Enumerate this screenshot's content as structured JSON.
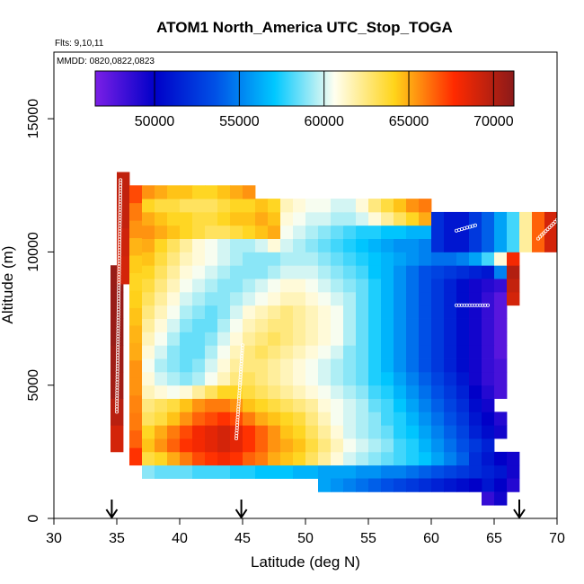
{
  "chart_data": {
    "type": "heatmap",
    "title": "ATOM1 North_America UTC_Stop_TOGA",
    "notes": [
      "Flts: 9,10,11",
      "MMDD: 0820,0822,0823"
    ],
    "xlabel": "Latitude (deg N)",
    "ylabel": "Altitude (m)",
    "xlim": [
      30,
      70
    ],
    "ylim": [
      0,
      17500
    ],
    "xticks": [
      30,
      35,
      40,
      45,
      50,
      55,
      60,
      65,
      70
    ],
    "yticks": [
      0,
      5000,
      10000,
      15000
    ],
    "grid": false,
    "colorbar": {
      "placement": "top, inside plot",
      "range": [
        46500,
        71200
      ],
      "ticks": [
        50000,
        55000,
        60000,
        65000,
        70000
      ],
      "stops": [
        "#7b1fe6",
        "#0000c8",
        "#0050e6",
        "#00c8ff",
        "#fffff0",
        "#ffd41a",
        "#ff2a00",
        "#8b1a1a"
      ]
    },
    "arrows_at_latitude": [
      34.6,
      44.9,
      67.0
    ],
    "profiles": [
      {
        "lat0": 34.5,
        "lat1": 35.5,
        "alt0": 2500,
        "alt1": 9500,
        "values": [
          69000,
          69800,
          70500,
          70600,
          70800,
          70800,
          70800
        ]
      },
      {
        "lat0": 35.0,
        "lat1": 36.0,
        "alt0": 8800,
        "alt1": 13000,
        "values": [
          69000,
          69200,
          69500,
          69600
        ]
      },
      {
        "lat0": 36.0,
        "lat1": 37.0,
        "alt0": 2000,
        "alt1": 12500,
        "values": [
          67500,
          66500,
          66000,
          65800,
          65500,
          65500,
          65000,
          64800,
          64500,
          64200,
          64000,
          64300,
          64800,
          65500,
          66000,
          67000
        ]
      },
      {
        "lat0": 37.0,
        "lat1": 67.0,
        "alt0": 1500,
        "alt1": 2000,
        "values": [
          59000,
          58500,
          58500,
          58500,
          58000,
          58000,
          58000,
          57500,
          57500,
          57000,
          57000,
          57000,
          56500,
          56500,
          56000,
          56000,
          56000,
          55500,
          55500,
          55000,
          55000,
          54500,
          54000,
          53500,
          53000,
          52500,
          52000,
          51500,
          51000,
          49500
        ]
      },
      {
        "lat0": 37.0,
        "lat1": 67.0,
        "alt0": 2000,
        "alt1": 2500,
        "values": [
          63500,
          64000,
          65000,
          66000,
          67000,
          67500,
          68000,
          67500,
          66500,
          66000,
          65000,
          64500,
          64000,
          63000,
          62000,
          61000,
          60000,
          59500,
          59000,
          58500,
          58000,
          57500,
          57000,
          56000,
          55000,
          54000,
          52000,
          51000,
          50000,
          49500
        ]
      },
      {
        "lat0": 37.0,
        "lat1": 65.0,
        "alt0": 2500,
        "alt1": 3000,
        "values": [
          64500,
          65500,
          66500,
          67500,
          68000,
          68500,
          69000,
          68500,
          67500,
          66500,
          65500,
          65000,
          64500,
          63500,
          62500,
          61500,
          60500,
          60000,
          59500,
          59000,
          58000,
          57500,
          56500,
          55500,
          54500,
          53500,
          52500,
          51500
        ]
      },
      {
        "lat0": 37.0,
        "lat1": 66.0,
        "alt0": 3000,
        "alt1": 3500,
        "values": [
          64000,
          65000,
          66000,
          67000,
          68000,
          68500,
          69000,
          68500,
          67500,
          66500,
          65500,
          64500,
          64000,
          63000,
          62000,
          61000,
          60000,
          59500,
          59000,
          58500,
          57500,
          57000,
          56000,
          55000,
          54000,
          53000,
          51500,
          50500,
          49500
        ]
      },
      {
        "lat0": 37.0,
        "lat1": 66.0,
        "alt0": 3500,
        "alt1": 4000,
        "values": [
          63000,
          63500,
          64500,
          65500,
          66500,
          67000,
          67500,
          67000,
          66000,
          65000,
          64500,
          64000,
          63500,
          62500,
          61500,
          60500,
          60000,
          59500,
          59000,
          58000,
          57500,
          56500,
          55500,
          54500,
          53500,
          52500,
          51000,
          50000,
          49000
        ]
      },
      {
        "lat0": 37.0,
        "lat1": 65.0,
        "alt0": 4000,
        "alt1": 4500,
        "values": [
          62500,
          63000,
          63500,
          64500,
          65500,
          66000,
          66000,
          65500,
          64500,
          64000,
          63500,
          63000,
          62500,
          62000,
          61000,
          60500,
          60000,
          59500,
          58500,
          58000,
          57000,
          56000,
          55000,
          54000,
          53000,
          52000,
          50500,
          49500
        ]
      },
      {
        "lat0": 37.0,
        "lat1": 66.0,
        "alt0": 4500,
        "alt1": 5000,
        "values": [
          61500,
          61000,
          60500,
          61000,
          62000,
          63000,
          64000,
          64000,
          63500,
          63000,
          62500,
          62000,
          61500,
          61000,
          60500,
          60000,
          59500,
          59000,
          58000,
          57500,
          56500,
          55500,
          54500,
          53500,
          52500,
          51500,
          50000,
          49000,
          48000
        ]
      },
      {
        "lat0": 37.0,
        "lat1": 66.0,
        "alt0": 5000,
        "alt1": 5500,
        "values": [
          61000,
          60000,
          59500,
          59000,
          59500,
          60500,
          61500,
          62500,
          63000,
          62500,
          62000,
          61500,
          61000,
          60500,
          60000,
          59500,
          59000,
          58500,
          57500,
          57000,
          56000,
          55000,
          54000,
          53000,
          52000,
          51000,
          49500,
          48500,
          48000
        ]
      },
      {
        "lat0": 37.0,
        "lat1": 66.0,
        "alt0": 5500,
        "alt1": 6000,
        "values": [
          60500,
          59500,
          59000,
          58500,
          59000,
          60000,
          61000,
          62000,
          62500,
          62500,
          62000,
          61500,
          61000,
          60500,
          60000,
          59500,
          59000,
          58500,
          57500,
          56500,
          55500,
          54500,
          53500,
          52500,
          51500,
          50500,
          49500,
          48500,
          48000
        ]
      },
      {
        "lat0": 37.0,
        "lat1": 66.0,
        "alt0": 6000,
        "alt1": 6500,
        "values": [
          61000,
          60000,
          59000,
          58500,
          58500,
          59500,
          60500,
          61500,
          62500,
          63000,
          62500,
          62000,
          61500,
          61000,
          60500,
          60000,
          59000,
          58500,
          57500,
          56500,
          55500,
          54500,
          53500,
          52500,
          51500,
          50500,
          49500,
          48500,
          47500
        ]
      },
      {
        "lat0": 37.0,
        "lat1": 66.0,
        "alt0": 6500,
        "alt1": 7000,
        "values": [
          61500,
          60500,
          59500,
          58500,
          58500,
          59000,
          60000,
          61000,
          62000,
          62500,
          63000,
          62500,
          62000,
          61500,
          61000,
          60500,
          59500,
          58500,
          57500,
          56500,
          55500,
          54500,
          53500,
          52500,
          51500,
          50500,
          49500,
          48500,
          47500
        ]
      },
      {
        "lat0": 37.0,
        "lat1": 66.0,
        "alt0": 7000,
        "alt1": 7500,
        "values": [
          62000,
          61000,
          60000,
          59000,
          58500,
          58500,
          59500,
          60500,
          61500,
          62000,
          62500,
          62500,
          62000,
          61500,
          61000,
          60500,
          59500,
          58500,
          57500,
          56500,
          55500,
          54500,
          53500,
          52500,
          51500,
          50500,
          49500,
          48500,
          47500
        ]
      },
      {
        "lat0": 37.0,
        "lat1": 66.0,
        "alt0": 7500,
        "alt1": 8000,
        "values": [
          62500,
          61500,
          60500,
          59500,
          59000,
          58500,
          59000,
          60000,
          61000,
          61500,
          62000,
          62500,
          62000,
          61500,
          61000,
          60500,
          59500,
          58500,
          57500,
          56500,
          55500,
          54500,
          53500,
          52500,
          51500,
          50500,
          49500,
          48500,
          47500
        ]
      },
      {
        "lat0": 37.0,
        "lat1": 67.0,
        "alt0": 8000,
        "alt1": 8500,
        "values": [
          63000,
          62000,
          61000,
          60000,
          59500,
          59000,
          59000,
          59500,
          60000,
          60500,
          61000,
          61500,
          61500,
          61000,
          60500,
          60000,
          59500,
          58500,
          57500,
          56500,
          55500,
          54500,
          53500,
          52500,
          51500,
          50500,
          49500,
          48500,
          47500,
          69000
        ]
      },
      {
        "lat0": 37.0,
        "lat1": 67.0,
        "alt0": 8500,
        "alt1": 9000,
        "values": [
          63500,
          62500,
          61500,
          60500,
          60000,
          59500,
          59000,
          59000,
          59500,
          60000,
          60500,
          61000,
          61000,
          60500,
          60000,
          59500,
          59000,
          58500,
          57500,
          56500,
          55500,
          54500,
          53500,
          52500,
          51500,
          50500,
          49500,
          49000,
          48500,
          69500
        ]
      },
      {
        "lat0": 37.0,
        "lat1": 67.0,
        "alt0": 9000,
        "alt1": 9500,
        "values": [
          64000,
          63000,
          62000,
          61000,
          60500,
          60000,
          59500,
          59000,
          59000,
          59000,
          59500,
          60000,
          60000,
          60000,
          59500,
          59000,
          58500,
          58000,
          57000,
          56500,
          55500,
          54500,
          53500,
          53000,
          52500,
          52000,
          51500,
          51000,
          55000,
          70000
        ]
      },
      {
        "lat0": 37.0,
        "lat1": 67.0,
        "alt0": 9500,
        "alt1": 10000,
        "values": [
          64500,
          63500,
          62500,
          61500,
          61000,
          60500,
          60000,
          59500,
          59000,
          59000,
          59000,
          59500,
          59500,
          59500,
          59000,
          58500,
          58000,
          57500,
          57000,
          56500,
          56000,
          55500,
          55000,
          54500,
          54500,
          55000,
          56000,
          58000,
          61000,
          68000
        ]
      },
      {
        "lat0": 37.0,
        "lat1": 48.0,
        "alt0": 10000,
        "alt1": 10500,
        "values": [
          65000,
          64000,
          63000,
          62000,
          61000,
          60500,
          60000,
          59500,
          59500,
          60000,
          61000
        ]
      },
      {
        "lat0": 37.0,
        "lat1": 48.0,
        "alt0": 10500,
        "alt1": 11000,
        "values": [
          65500,
          65000,
          64500,
          64000,
          63500,
          63000,
          63000,
          63500,
          64000,
          64500,
          65000
        ]
      },
      {
        "lat0": 37.0,
        "lat1": 48.0,
        "alt0": 11000,
        "alt1": 11500,
        "values": [
          65000,
          64500,
          64000,
          64000,
          63500,
          63500,
          64000,
          64500,
          64500,
          65000,
          64500
        ]
      },
      {
        "lat0": 37.0,
        "lat1": 48.0,
        "alt0": 11500,
        "alt1": 12000,
        "values": [
          64000,
          63500,
          63500,
          63000,
          63000,
          63000,
          63500,
          64000,
          64000,
          64500,
          64000
        ]
      },
      {
        "lat0": 37.0,
        "lat1": 46.0,
        "alt0": 12000,
        "alt1": 12500,
        "values": [
          65500,
          65000,
          64500,
          64500,
          64000,
          64000,
          64500,
          65000,
          65500
        ]
      },
      {
        "lat0": 48.0,
        "lat1": 60.0,
        "alt0": 10000,
        "alt1": 10500,
        "values": [
          60000,
          59500,
          59000,
          58500,
          58000,
          57500,
          57000,
          56500,
          56000,
          55500,
          55500,
          55000
        ]
      },
      {
        "lat0": 48.0,
        "lat1": 60.0,
        "alt0": 10500,
        "alt1": 11000,
        "values": [
          60500,
          60000,
          59500,
          59000,
          58500,
          58000,
          57500,
          57500,
          57000,
          57000,
          56500,
          56500
        ]
      },
      {
        "lat0": 48.0,
        "lat1": 60.0,
        "alt0": 11000,
        "alt1": 11500,
        "values": [
          61000,
          60500,
          60000,
          60000,
          59500,
          59500,
          60000,
          61000,
          62000,
          63000,
          64000,
          65000
        ]
      },
      {
        "lat0": 48.0,
        "lat1": 60.0,
        "alt0": 11500,
        "alt1": 12000,
        "values": [
          61500,
          61000,
          60500,
          60500,
          60000,
          60000,
          61000,
          62500,
          63500,
          64500,
          65500,
          66000
        ]
      },
      {
        "lat0": 60.0,
        "lat1": 70.0,
        "alt0": 10000,
        "alt1": 11500,
        "values": [
          52000,
          51000,
          51000,
          52500,
          54000,
          56000,
          58000,
          62000,
          66500,
          69000
        ]
      },
      {
        "lat0": 64.0,
        "lat1": 67.0,
        "alt0": 1000,
        "alt1": 1500,
        "values": [
          51000,
          50000,
          49000
        ]
      },
      {
        "lat0": 51.0,
        "lat1": 64.0,
        "alt0": 1000,
        "alt1": 1500,
        "values": [
          56000,
          55500,
          55000,
          54500,
          54000,
          53500,
          53000,
          52500,
          52000,
          51500,
          51000,
          50500,
          50000
        ]
      },
      {
        "lat0": 64.0,
        "lat1": 65.0,
        "alt0": 500,
        "alt1": 1000,
        "values": [
          48500
        ]
      },
      {
        "lat0": 65.0,
        "lat1": 66.0,
        "alt0": 500,
        "alt1": 1000,
        "values": [
          49500
        ]
      }
    ],
    "sample_tracks": [
      {
        "lat0": 35.0,
        "alt0": 4000,
        "lat1": 35.3,
        "alt1": 12700
      },
      {
        "lat0": 36.5,
        "alt0": 12700,
        "lat1": 37.5,
        "alt1": 12700
      },
      {
        "lat0": 44.5,
        "alt0": 3000,
        "lat1": 45.0,
        "alt1": 6500
      },
      {
        "lat0": 62.0,
        "alt0": 10800,
        "lat1": 63.5,
        "alt1": 11000
      },
      {
        "lat0": 62.0,
        "alt0": 8000,
        "lat1": 64.5,
        "alt1": 8000
      },
      {
        "lat0": 68.5,
        "alt0": 10500,
        "lat1": 70.0,
        "alt1": 11200
      }
    ]
  }
}
